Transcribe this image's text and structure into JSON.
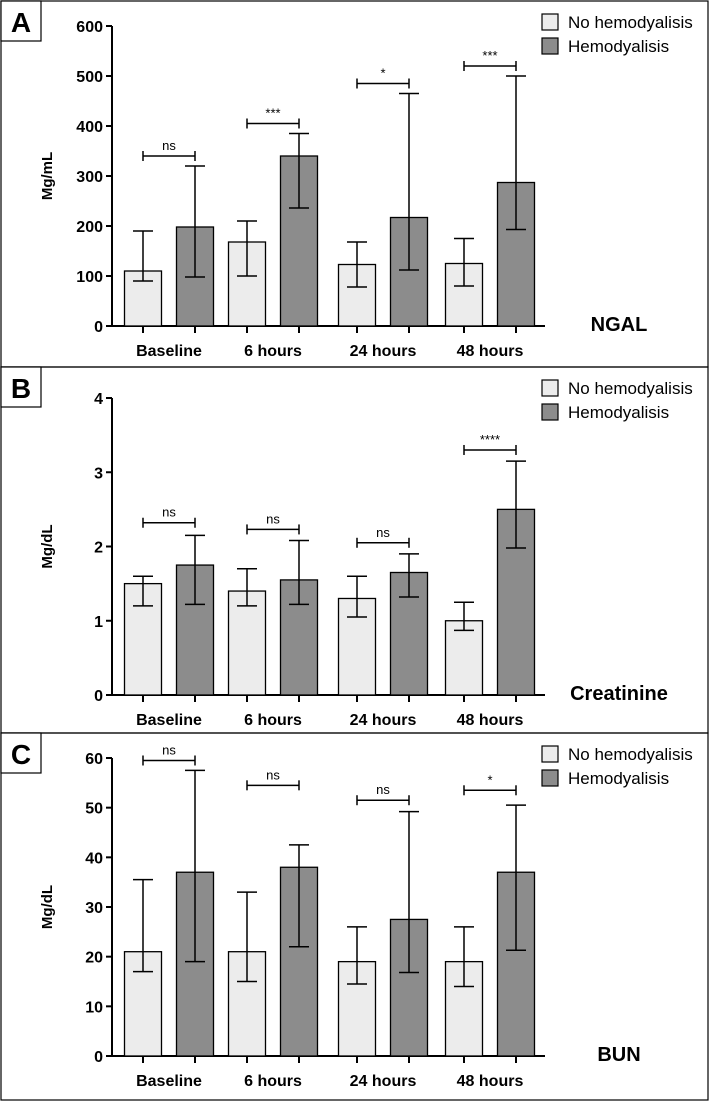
{
  "colors": {
    "no_hemodyalisis": "#ececec",
    "hemodyalisis": "#8c8c8c",
    "stroke": "#000000"
  },
  "chart_data": [
    {
      "type": "bar",
      "panel": "A",
      "marker": "NGAL",
      "ylabel": "Mg/mL",
      "ylim": [
        0,
        600
      ],
      "yticks": [
        0,
        100,
        200,
        300,
        400,
        500,
        600
      ],
      "categories": [
        "Baseline",
        "6 hours",
        "24 hours",
        "48 hours"
      ],
      "series": [
        {
          "name": "No hemodyalisis",
          "values": [
            110,
            168,
            123,
            125
          ],
          "err_low": [
            90,
            100,
            78,
            80
          ],
          "err_high": [
            190,
            210,
            168,
            175
          ]
        },
        {
          "name": "Hemodyalisis",
          "values": [
            198,
            340,
            217,
            287
          ],
          "err_low": [
            98,
            236,
            112,
            193
          ],
          "err_high": [
            320,
            385,
            465,
            500
          ]
        }
      ],
      "significance": [
        {
          "category": 0,
          "label": "ns",
          "y": 340
        },
        {
          "category": 1,
          "label": "***",
          "y": 405
        },
        {
          "category": 2,
          "label": "*",
          "y": 485
        },
        {
          "category": 3,
          "label": "***",
          "y": 520
        }
      ]
    },
    {
      "type": "bar",
      "panel": "B",
      "marker": "Creatinine",
      "ylabel": "Mg/dL",
      "ylim": [
        0,
        4
      ],
      "yticks": [
        0,
        1,
        2,
        3,
        4
      ],
      "categories": [
        "Baseline",
        "6 hours",
        "24 hours",
        "48 hours"
      ],
      "series": [
        {
          "name": "No hemodyalisis",
          "values": [
            1.5,
            1.4,
            1.3,
            1.0
          ],
          "err_low": [
            1.2,
            1.2,
            1.05,
            0.87
          ],
          "err_high": [
            1.6,
            1.7,
            1.6,
            1.25
          ]
        },
        {
          "name": "Hemodyalisis",
          "values": [
            1.75,
            1.55,
            1.65,
            2.5
          ],
          "err_low": [
            1.22,
            1.22,
            1.32,
            1.98
          ],
          "err_high": [
            2.15,
            2.08,
            1.9,
            3.15
          ]
        }
      ],
      "significance": [
        {
          "category": 0,
          "label": "ns",
          "y": 2.32
        },
        {
          "category": 1,
          "label": "ns",
          "y": 2.23
        },
        {
          "category": 2,
          "label": "ns",
          "y": 2.05
        },
        {
          "category": 3,
          "label": "****",
          "y": 3.3
        }
      ]
    },
    {
      "type": "bar",
      "panel": "C",
      "marker": "BUN",
      "ylabel": "Mg/dL",
      "ylim": [
        0,
        60
      ],
      "yticks": [
        0,
        10,
        20,
        30,
        40,
        50,
        60
      ],
      "categories": [
        "Baseline",
        "6 hours",
        "24 hours",
        "48 hours"
      ],
      "series": [
        {
          "name": "No hemodyalisis",
          "values": [
            21,
            21,
            19,
            19
          ],
          "err_low": [
            17,
            15,
            14.5,
            14
          ],
          "err_high": [
            35.5,
            33,
            26,
            26
          ]
        },
        {
          "name": "Hemodyalisis",
          "values": [
            37,
            38,
            27.5,
            37
          ],
          "err_low": [
            19,
            22,
            16.8,
            21.3
          ],
          "err_high": [
            57.5,
            42.5,
            49.2,
            50.5
          ]
        }
      ],
      "significance": [
        {
          "category": 0,
          "label": "ns",
          "y": 59.5
        },
        {
          "category": 1,
          "label": "ns",
          "y": 54.5
        },
        {
          "category": 2,
          "label": "ns",
          "y": 51.5
        },
        {
          "category": 3,
          "label": "*",
          "y": 53.5
        }
      ]
    }
  ]
}
